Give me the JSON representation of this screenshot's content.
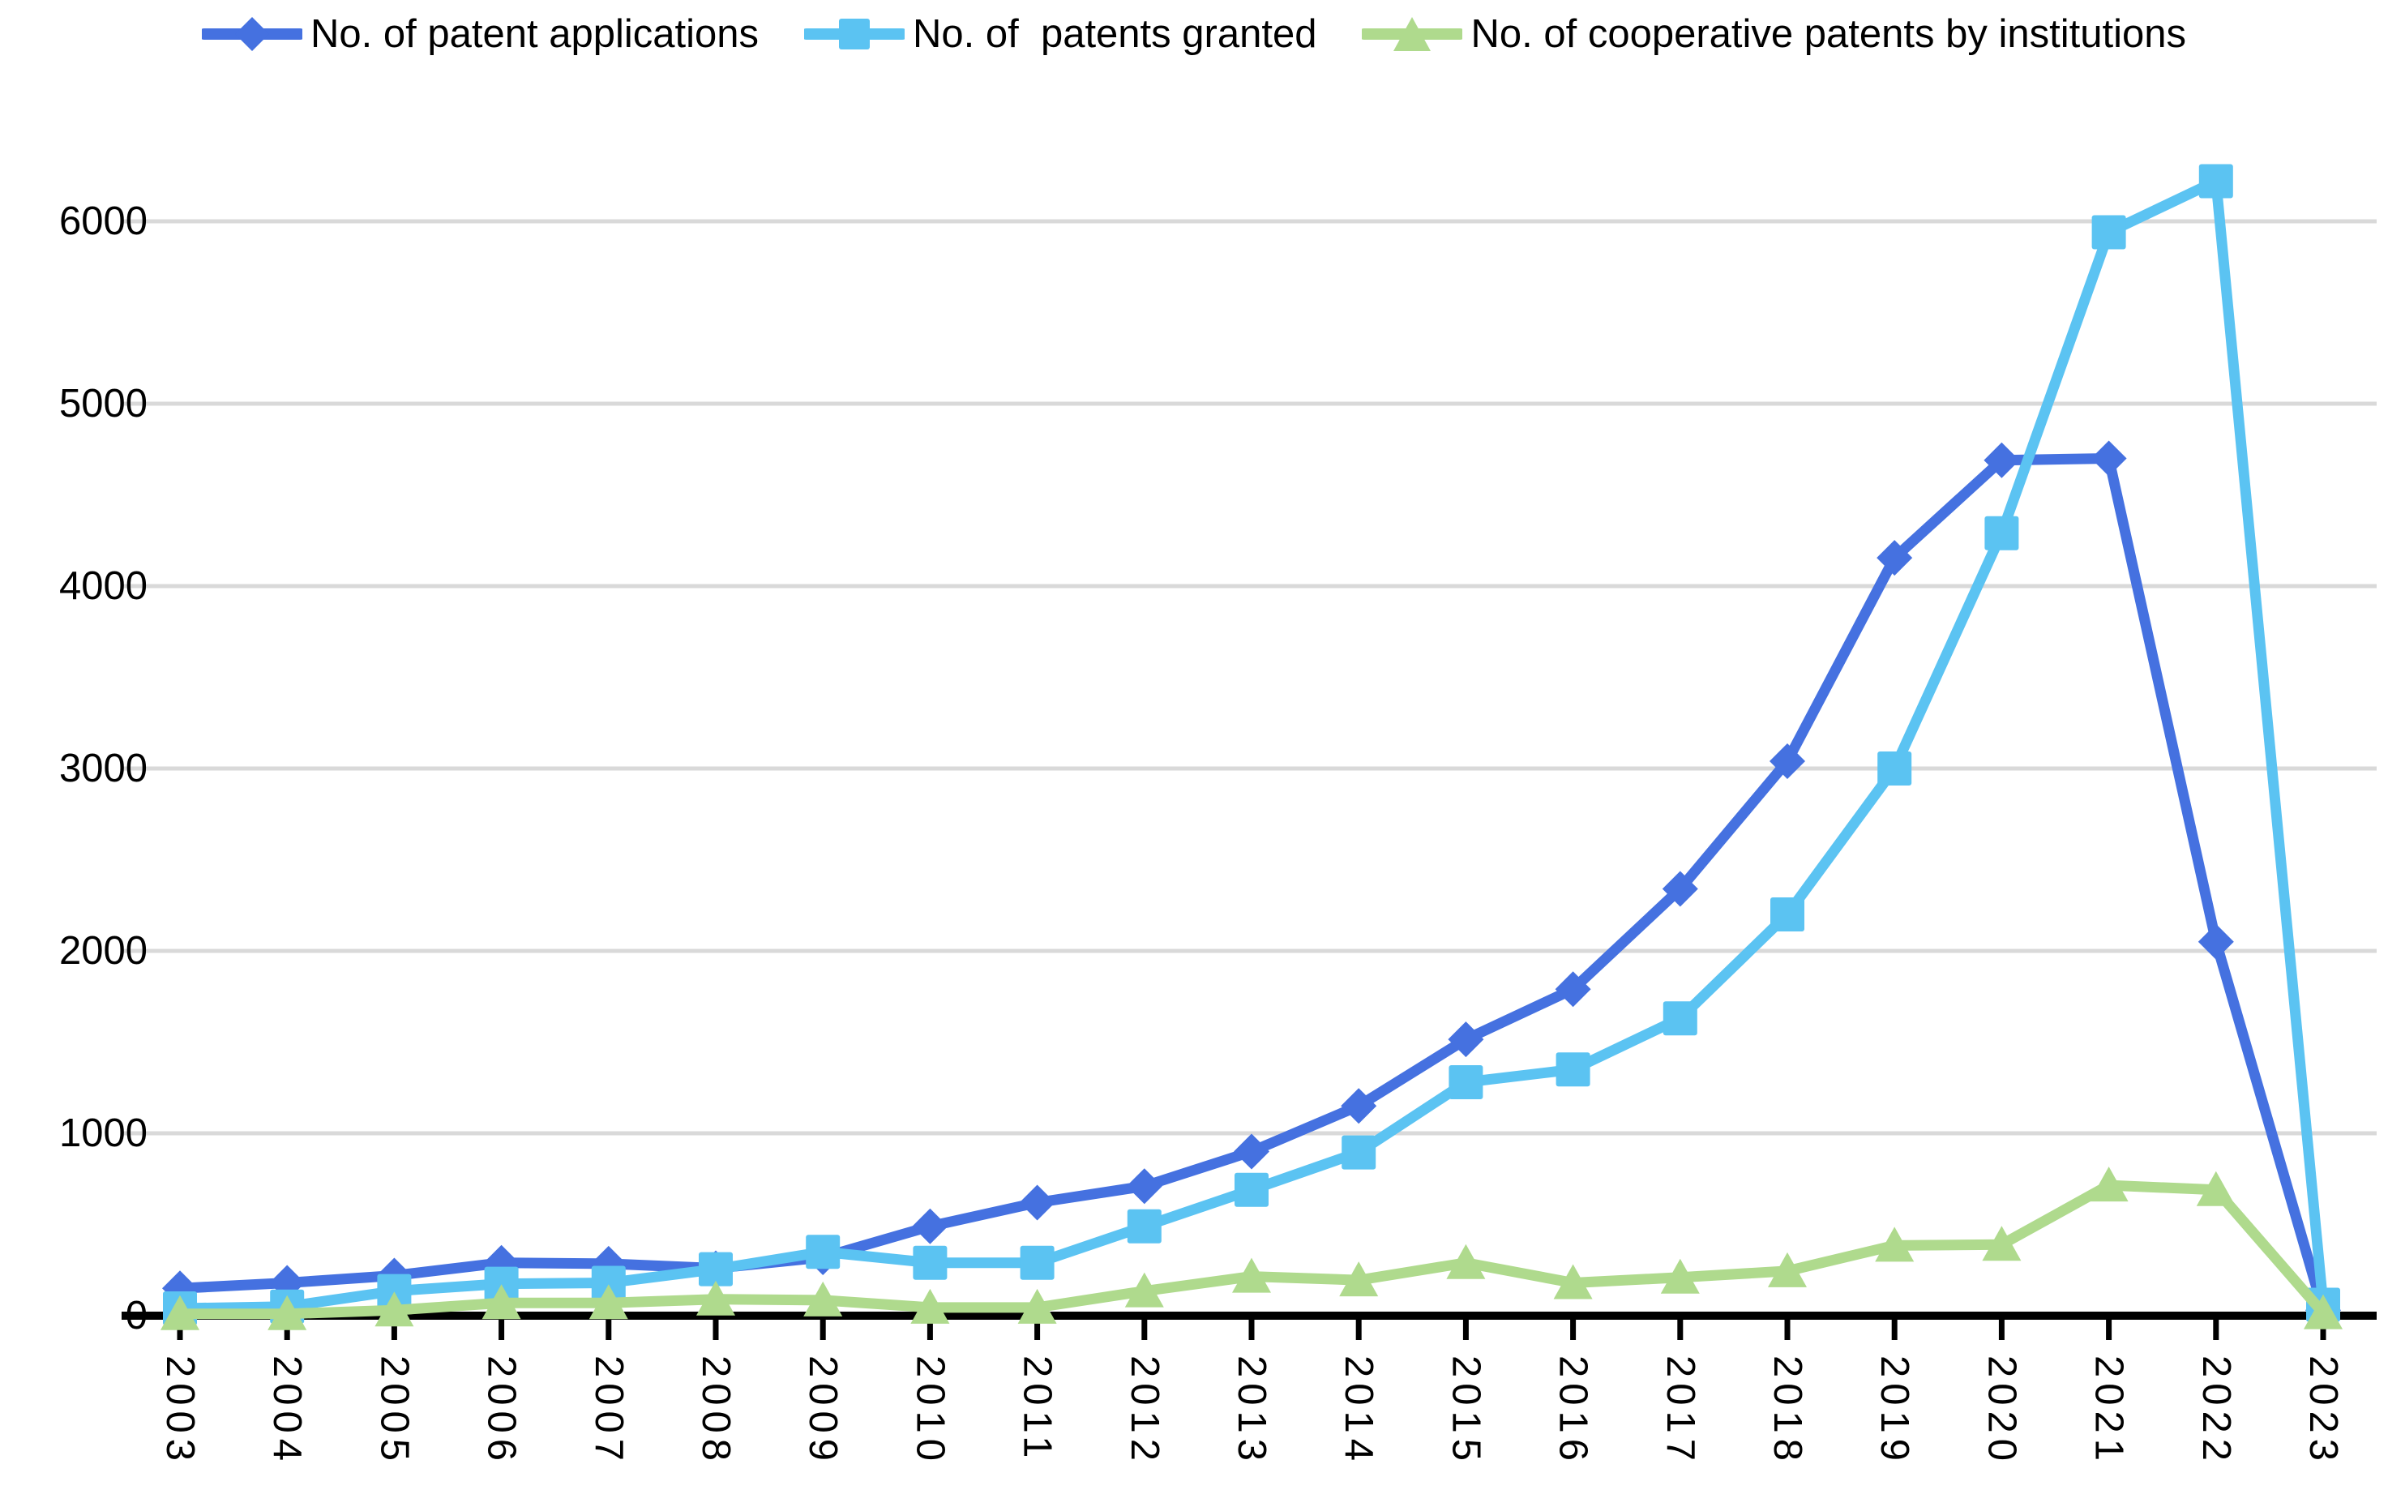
{
  "page": {
    "background": "#ffffff"
  },
  "legend": {
    "position": "top"
  },
  "chart_data": {
    "type": "line",
    "title": "",
    "xlabel": "",
    "ylabel": "",
    "x": [
      "2003",
      "2004",
      "2005",
      "2006",
      "2007",
      "2008",
      "2009",
      "2010",
      "2011",
      "2012",
      "2013",
      "2014",
      "2015",
      "2016",
      "2017",
      "2018",
      "2019",
      "2020",
      "2021",
      "2022",
      "2023"
    ],
    "series": [
      {
        "name": "No. of patent applications",
        "marker": "diamond",
        "color": "#4571E0",
        "values": [
          150,
          180,
          220,
          290,
          285,
          260,
          320,
          490,
          620,
          710,
          900,
          1150,
          1515,
          1790,
          2340,
          3040,
          4155,
          4690,
          4700,
          2050,
          30
        ]
      },
      {
        "name": "No. of  patents granted",
        "marker": "square",
        "color": "#5BC3F2",
        "values": [
          40,
          50,
          135,
          175,
          180,
          255,
          350,
          290,
          290,
          490,
          690,
          895,
          1280,
          1350,
          1630,
          2200,
          3000,
          4290,
          5940,
          6220,
          60
        ]
      },
      {
        "name": "No. of cooperative patents by institutions",
        "marker": "triangle",
        "color": "#AFDA8D",
        "values": [
          10,
          10,
          30,
          70,
          70,
          90,
          85,
          45,
          45,
          135,
          215,
          195,
          290,
          180,
          210,
          245,
          385,
          390,
          715,
          690,
          15
        ]
      }
    ],
    "ylim": [
      0,
      6500
    ],
    "yticks": [
      0,
      1000,
      2000,
      3000,
      4000,
      5000,
      6000
    ],
    "grid": "horizontal",
    "legend_position": "top",
    "colors": {
      "gridline": "#D9D9D9",
      "axis": "#000000",
      "text": "#000000"
    }
  }
}
